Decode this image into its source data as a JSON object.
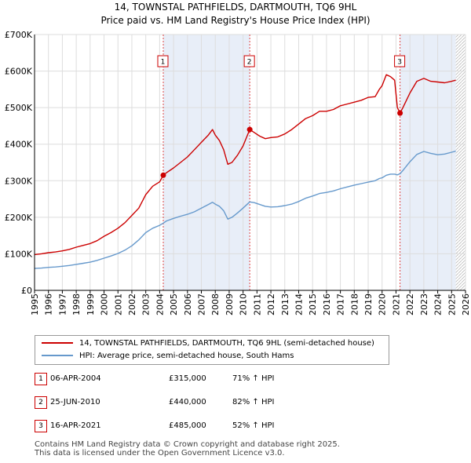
{
  "header": {
    "line1": "14, TOWNSTAL PATHFIELDS, DARTMOUTH, TQ6 9HL",
    "line2": "Price paid vs. HM Land Registry's House Price Index (HPI)"
  },
  "colors": {
    "price_line": "#cc0000",
    "hpi_line": "#6699cc",
    "shade": "#e8eef8",
    "grid": "#dddddd"
  },
  "chart_data": {
    "type": "line",
    "x_range": [
      1995,
      2026
    ],
    "ylim": [
      0,
      700000
    ],
    "x_ticks": [
      "1995",
      "1996",
      "1997",
      "1998",
      "1999",
      "2000",
      "2001",
      "2002",
      "2003",
      "2004",
      "2005",
      "2006",
      "2007",
      "2008",
      "2009",
      "2010",
      "2011",
      "2012",
      "2013",
      "2014",
      "2015",
      "2016",
      "2017",
      "2018",
      "2019",
      "2020",
      "2021",
      "2022",
      "2023",
      "2024",
      "2025",
      "2026"
    ],
    "y_ticks": [
      {
        "value": 0,
        "label": "£0"
      },
      {
        "value": 100000,
        "label": "£100K"
      },
      {
        "value": 200000,
        "label": "£200K"
      },
      {
        "value": 300000,
        "label": "£300K"
      },
      {
        "value": 400000,
        "label": "£400K"
      },
      {
        "value": 500000,
        "label": "£500K"
      },
      {
        "value": 600000,
        "label": "£600K"
      },
      {
        "value": 700000,
        "label": "£700K"
      }
    ],
    "shaded_ranges": [
      [
        2004.26,
        2010.48
      ],
      [
        2021.29,
        2025.3
      ]
    ],
    "hatched_from": 2025.3,
    "series": [
      {
        "name": "14, TOWNSTAL PATHFIELDS, DARTMOUTH, TQ6 9HL (semi-detached house)",
        "color": "#cc0000",
        "points": [
          [
            1995.0,
            98000
          ],
          [
            1995.5,
            100000
          ],
          [
            1996.0,
            103000
          ],
          [
            1996.5,
            105000
          ],
          [
            1997.0,
            108000
          ],
          [
            1997.5,
            112000
          ],
          [
            1998.0,
            118000
          ],
          [
            1998.5,
            123000
          ],
          [
            1999.0,
            128000
          ],
          [
            1999.5,
            136000
          ],
          [
            2000.0,
            148000
          ],
          [
            2000.5,
            158000
          ],
          [
            2001.0,
            170000
          ],
          [
            2001.5,
            185000
          ],
          [
            2002.0,
            205000
          ],
          [
            2002.5,
            225000
          ],
          [
            2003.0,
            262000
          ],
          [
            2003.5,
            285000
          ],
          [
            2004.0,
            297000
          ],
          [
            2004.26,
            315000
          ],
          [
            2004.5,
            322000
          ],
          [
            2005.0,
            335000
          ],
          [
            2005.5,
            350000
          ],
          [
            2006.0,
            365000
          ],
          [
            2006.5,
            385000
          ],
          [
            2007.0,
            405000
          ],
          [
            2007.5,
            425000
          ],
          [
            2007.8,
            440000
          ],
          [
            2008.0,
            425000
          ],
          [
            2008.3,
            410000
          ],
          [
            2008.6,
            385000
          ],
          [
            2008.9,
            345000
          ],
          [
            2009.2,
            350000
          ],
          [
            2009.6,
            370000
          ],
          [
            2010.0,
            395000
          ],
          [
            2010.48,
            440000
          ],
          [
            2010.8,
            432000
          ],
          [
            2011.2,
            422000
          ],
          [
            2011.6,
            415000
          ],
          [
            2012.0,
            418000
          ],
          [
            2012.5,
            420000
          ],
          [
            2013.0,
            428000
          ],
          [
            2013.5,
            440000
          ],
          [
            2014.0,
            455000
          ],
          [
            2014.5,
            470000
          ],
          [
            2015.0,
            478000
          ],
          [
            2015.5,
            490000
          ],
          [
            2016.0,
            490000
          ],
          [
            2016.5,
            495000
          ],
          [
            2017.0,
            505000
          ],
          [
            2017.5,
            510000
          ],
          [
            2018.0,
            515000
          ],
          [
            2018.5,
            520000
          ],
          [
            2019.0,
            528000
          ],
          [
            2019.5,
            530000
          ],
          [
            2019.8,
            550000
          ],
          [
            2020.0,
            560000
          ],
          [
            2020.3,
            590000
          ],
          [
            2020.6,
            585000
          ],
          [
            2020.9,
            575000
          ],
          [
            2021.1,
            500000
          ],
          [
            2021.29,
            485000
          ],
          [
            2021.5,
            500000
          ],
          [
            2022.0,
            540000
          ],
          [
            2022.5,
            572000
          ],
          [
            2023.0,
            580000
          ],
          [
            2023.5,
            572000
          ],
          [
            2024.0,
            570000
          ],
          [
            2024.5,
            568000
          ],
          [
            2025.0,
            572000
          ],
          [
            2025.3,
            575000
          ]
        ]
      },
      {
        "name": "HPI: Average price, semi-detached house, South Hams",
        "color": "#6699cc",
        "points": [
          [
            1995.0,
            60000
          ],
          [
            1995.5,
            61000
          ],
          [
            1996.0,
            63000
          ],
          [
            1996.5,
            64000
          ],
          [
            1997.0,
            66000
          ],
          [
            1997.5,
            68000
          ],
          [
            1998.0,
            71000
          ],
          [
            1998.5,
            74000
          ],
          [
            1999.0,
            77000
          ],
          [
            1999.5,
            82000
          ],
          [
            2000.0,
            88000
          ],
          [
            2000.5,
            94000
          ],
          [
            2001.0,
            101000
          ],
          [
            2001.5,
            110000
          ],
          [
            2002.0,
            122000
          ],
          [
            2002.5,
            138000
          ],
          [
            2003.0,
            158000
          ],
          [
            2003.5,
            170000
          ],
          [
            2004.0,
            178000
          ],
          [
            2004.26,
            184000
          ],
          [
            2004.5,
            190000
          ],
          [
            2005.0,
            197000
          ],
          [
            2005.5,
            203000
          ],
          [
            2006.0,
            208000
          ],
          [
            2006.5,
            215000
          ],
          [
            2007.0,
            225000
          ],
          [
            2007.5,
            235000
          ],
          [
            2007.8,
            241000
          ],
          [
            2008.0,
            236000
          ],
          [
            2008.3,
            230000
          ],
          [
            2008.6,
            218000
          ],
          [
            2008.9,
            195000
          ],
          [
            2009.2,
            200000
          ],
          [
            2009.6,
            212000
          ],
          [
            2010.0,
            225000
          ],
          [
            2010.48,
            242000
          ],
          [
            2010.8,
            240000
          ],
          [
            2011.2,
            235000
          ],
          [
            2011.6,
            230000
          ],
          [
            2012.0,
            228000
          ],
          [
            2012.5,
            229000
          ],
          [
            2013.0,
            232000
          ],
          [
            2013.5,
            236000
          ],
          [
            2014.0,
            243000
          ],
          [
            2014.5,
            252000
          ],
          [
            2015.0,
            258000
          ],
          [
            2015.5,
            265000
          ],
          [
            2016.0,
            268000
          ],
          [
            2016.5,
            272000
          ],
          [
            2017.0,
            278000
          ],
          [
            2017.5,
            283000
          ],
          [
            2018.0,
            288000
          ],
          [
            2018.5,
            292000
          ],
          [
            2019.0,
            296000
          ],
          [
            2019.5,
            300000
          ],
          [
            2019.8,
            306000
          ],
          [
            2020.0,
            308000
          ],
          [
            2020.3,
            315000
          ],
          [
            2020.6,
            318000
          ],
          [
            2020.9,
            318000
          ],
          [
            2021.1,
            316000
          ],
          [
            2021.29,
            319000
          ],
          [
            2021.5,
            328000
          ],
          [
            2022.0,
            352000
          ],
          [
            2022.5,
            372000
          ],
          [
            2023.0,
            380000
          ],
          [
            2023.5,
            375000
          ],
          [
            2024.0,
            371000
          ],
          [
            2024.5,
            373000
          ],
          [
            2025.0,
            378000
          ],
          [
            2025.3,
            381000
          ]
        ]
      }
    ],
    "markers": [
      {
        "label": "1",
        "x": 2004.26,
        "y": 315000
      },
      {
        "label": "2",
        "x": 2010.48,
        "y": 440000
      },
      {
        "label": "3",
        "x": 2021.29,
        "y": 485000
      }
    ]
  },
  "legend": {
    "items": [
      {
        "label": "14, TOWNSTAL PATHFIELDS, DARTMOUTH, TQ6 9HL (semi-detached house)"
      },
      {
        "label": "HPI: Average price, semi-detached house, South Hams"
      }
    ]
  },
  "sales": [
    {
      "num": "1",
      "date": "06-APR-2004",
      "price": "£315,000",
      "hpi": "71% ↑ HPI"
    },
    {
      "num": "2",
      "date": "25-JUN-2010",
      "price": "£440,000",
      "hpi": "82% ↑ HPI"
    },
    {
      "num": "3",
      "date": "16-APR-2021",
      "price": "£485,000",
      "hpi": "52% ↑ HPI"
    }
  ],
  "footer": {
    "line1": "Contains HM Land Registry data © Crown copyright and database right 2025.",
    "line2": "This data is licensed under the Open Government Licence v3.0."
  }
}
